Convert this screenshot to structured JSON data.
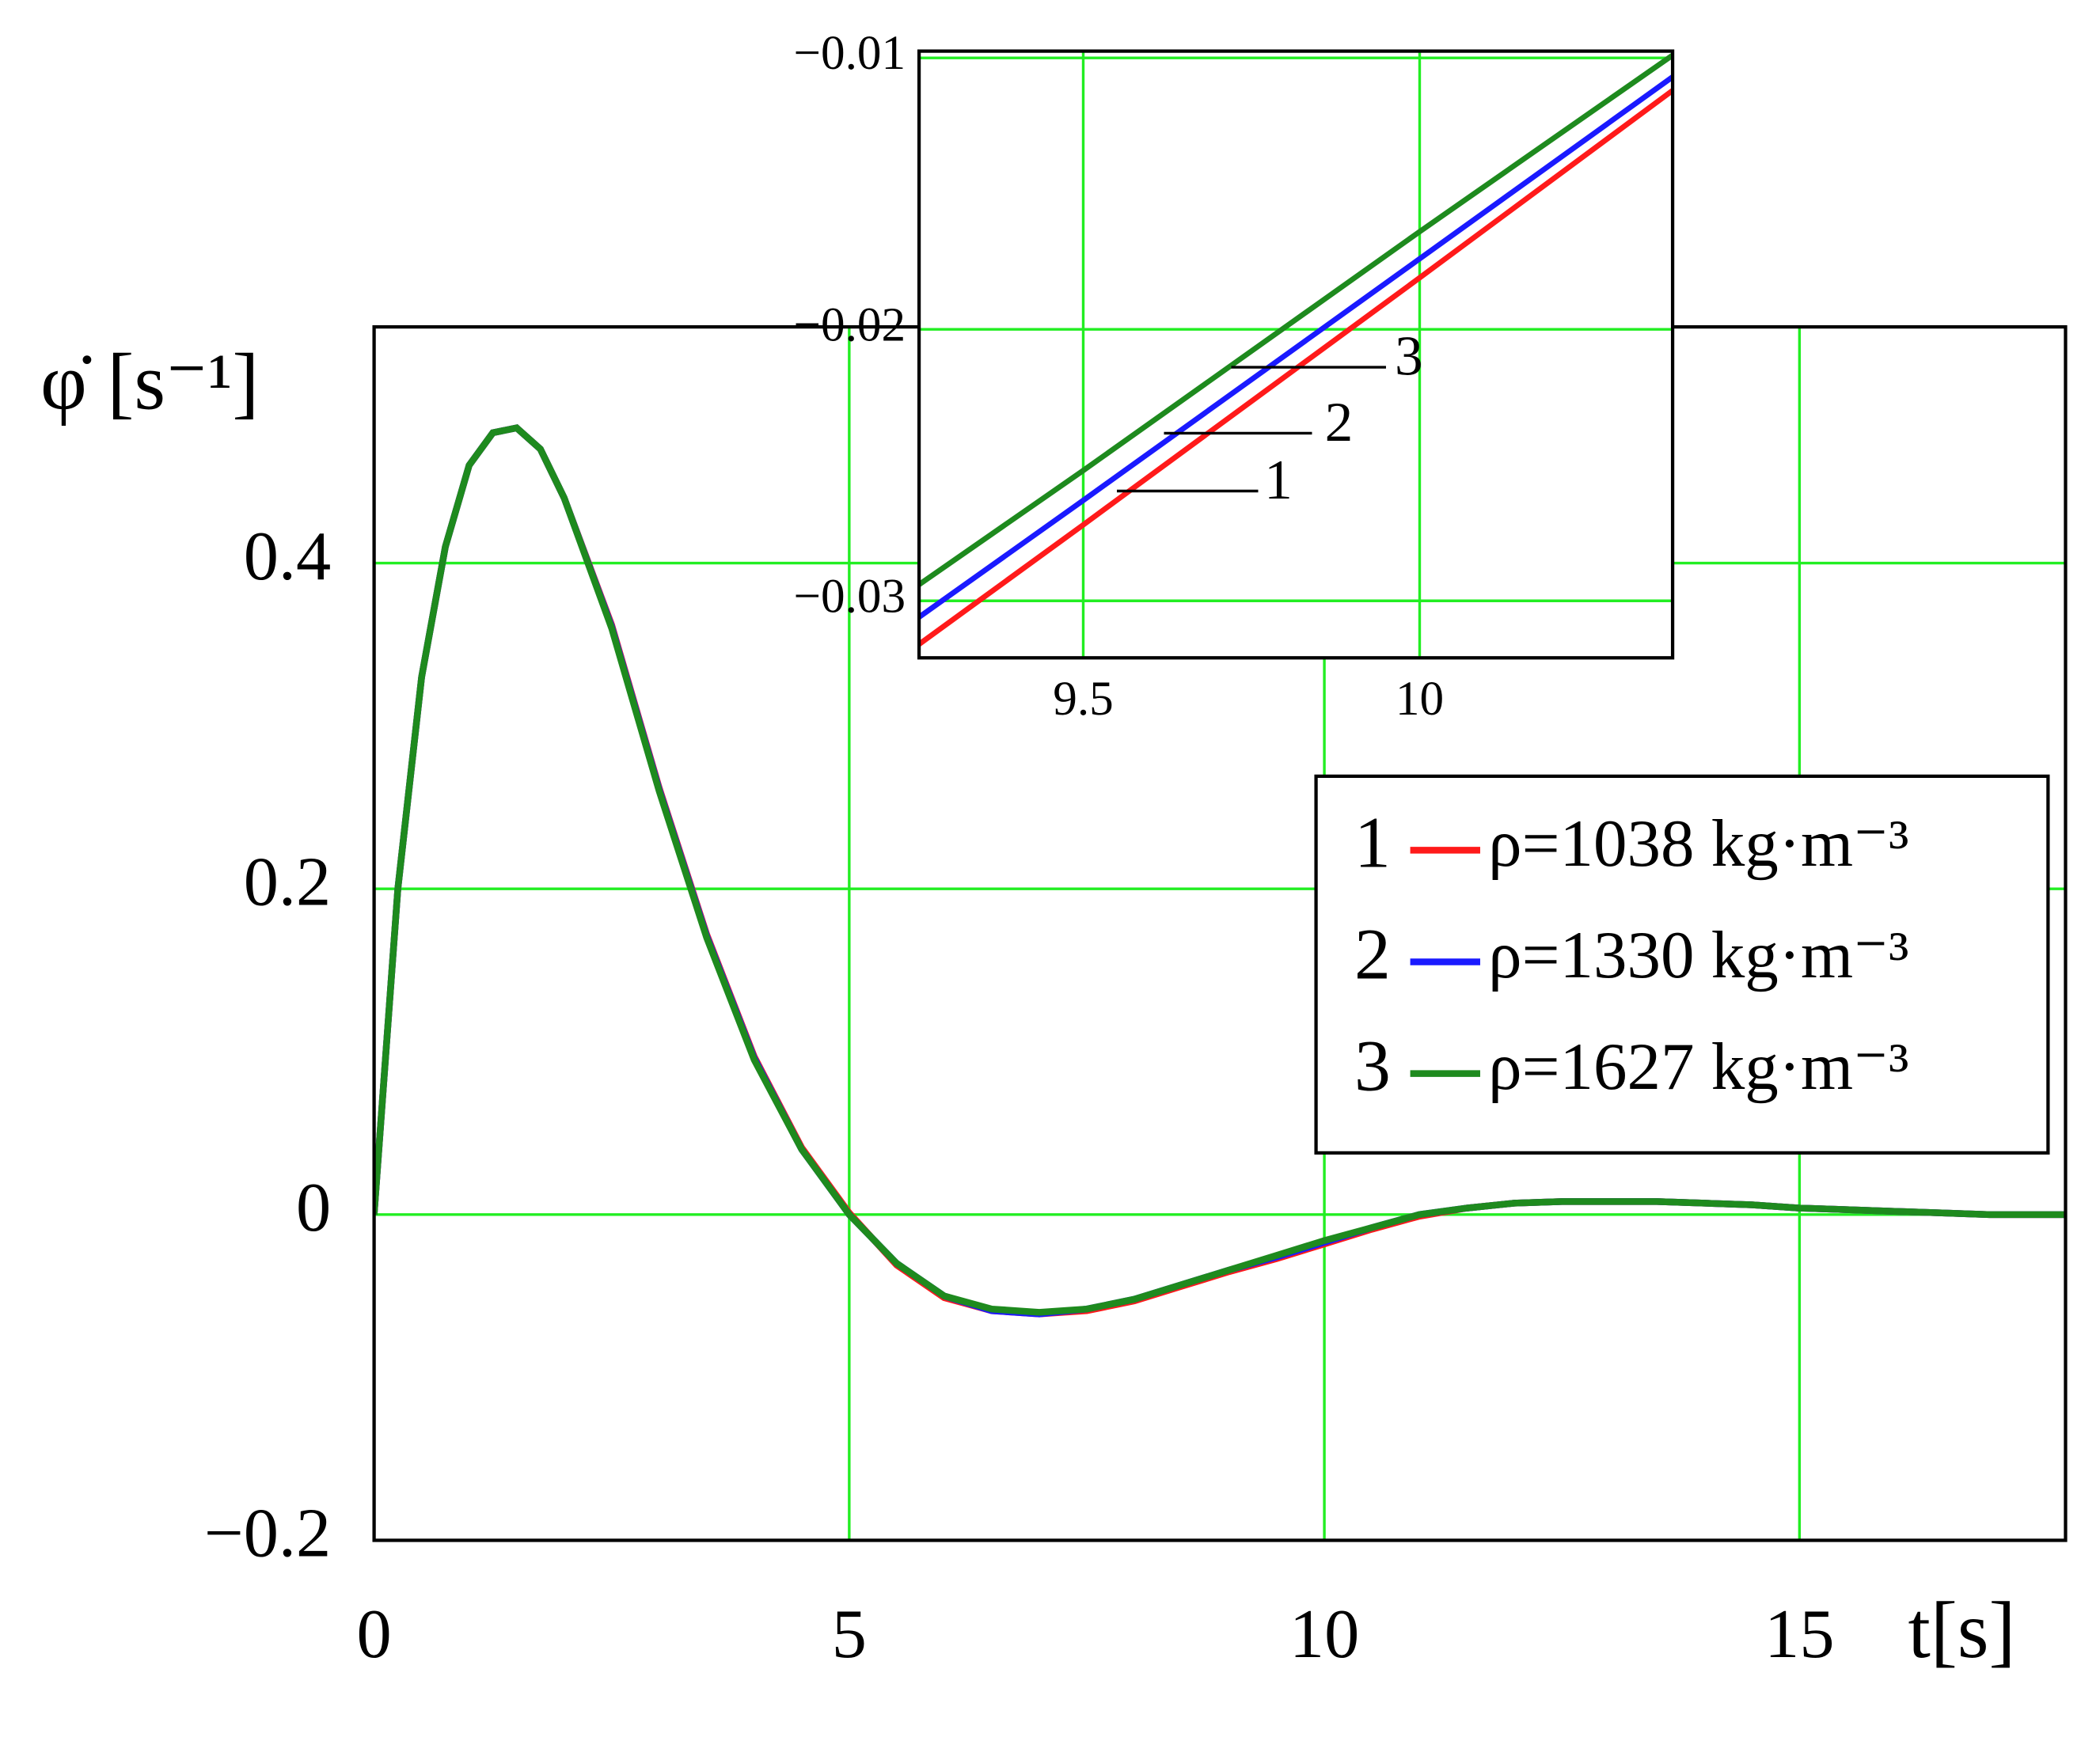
{
  "chart_data": [
    {
      "type": "line",
      "ylabel": "φ̇ [s⁻¹]",
      "xlabel": "t[s]",
      "xlim": [
        0,
        17.8
      ],
      "ylim": [
        -0.2,
        0.545
      ],
      "xticks": [
        0,
        5,
        10,
        15
      ],
      "yticks": [
        {
          "value": -0.2,
          "label": "−0.2"
        },
        0,
        0.2,
        0.4
      ],
      "grid": true,
      "grid_color": "#22ee22",
      "legend": "right",
      "x": [
        0,
        0.25,
        0.5,
        0.75,
        1,
        1.25,
        1.5,
        1.75,
        2,
        2.5,
        3,
        3.5,
        4,
        4.5,
        5,
        5.5,
        6,
        6.5,
        7,
        7.5,
        8,
        8.5,
        9,
        9.5,
        10,
        10.5,
        11,
        11.5,
        12,
        12.5,
        13,
        13.5,
        14,
        14.5,
        15,
        15.5,
        16,
        16.5,
        17,
        17.8
      ],
      "series": [
        {
          "label": "1",
          "name": "ρ=1038 kg·m⁻³",
          "color": "#ff1a1a",
          "values": [
            0,
            0.2,
            0.33,
            0.41,
            0.46,
            0.48,
            0.483,
            0.47,
            0.44,
            0.362,
            0.262,
            0.172,
            0.097,
            0.041,
            0.001,
            -0.031,
            -0.051,
            -0.059,
            -0.061,
            -0.059,
            -0.053,
            -0.044,
            -0.035,
            -0.027,
            -0.018,
            -0.009,
            -0.001,
            0.004,
            0.007,
            0.008,
            0.008,
            0.008,
            0.007,
            0.006,
            0.004,
            0.003,
            0.002,
            0.001,
            0,
            0
          ]
        },
        {
          "label": "2",
          "name": "ρ=1330 kg·m⁻³",
          "color": "#1a1aff",
          "values": [
            0,
            0.2,
            0.33,
            0.41,
            0.46,
            0.48,
            0.483,
            0.47,
            0.44,
            0.361,
            0.261,
            0.171,
            0.096,
            0.04,
            0,
            -0.03,
            -0.05,
            -0.059,
            -0.061,
            -0.058,
            -0.052,
            -0.043,
            -0.034,
            -0.026,
            -0.017,
            -0.008,
            0,
            0.004,
            0.007,
            0.008,
            0.008,
            0.008,
            0.007,
            0.006,
            0.004,
            0.003,
            0.002,
            0.001,
            0,
            0
          ]
        },
        {
          "label": "3",
          "name": "ρ=1627 kg·m⁻³",
          "color": "#1e8a1e",
          "values": [
            0,
            0.2,
            0.33,
            0.41,
            0.46,
            0.48,
            0.483,
            0.47,
            0.44,
            0.36,
            0.26,
            0.17,
            0.095,
            0.04,
            0,
            -0.03,
            -0.05,
            -0.058,
            -0.06,
            -0.058,
            -0.052,
            -0.043,
            -0.034,
            -0.025,
            -0.016,
            -0.008,
            0,
            0.004,
            0.007,
            0.008,
            0.008,
            0.008,
            0.007,
            0.006,
            0.004,
            0.003,
            0.002,
            0.001,
            0,
            0
          ]
        }
      ]
    },
    {
      "type": "line",
      "xlim": [
        9.256,
        10.376
      ],
      "ylim": [
        -0.0321,
        -0.00975
      ],
      "xticks": [
        9.5,
        10
      ],
      "yticks": [
        {
          "value": -0.03,
          "label": "−0.03"
        },
        {
          "value": -0.02,
          "label": "−0.02"
        },
        {
          "value": -0.01,
          "label": "−0.01"
        }
      ],
      "grid": true,
      "grid_color": "#22ee22",
      "x": [
        9.256,
        9.5,
        10,
        10.376
      ],
      "series": [
        {
          "label": "1",
          "color": "#ff1a1a",
          "values": [
            -0.0316,
            -0.0272,
            -0.0181,
            -0.0112
          ]
        },
        {
          "label": "2",
          "color": "#1a1aff",
          "values": [
            -0.0306,
            -0.0263,
            -0.0174,
            -0.0107
          ]
        },
        {
          "label": "3",
          "color": "#1e8a1e",
          "values": [
            -0.0294,
            -0.0252,
            -0.0164,
            -0.0099
          ]
        }
      ]
    }
  ]
}
